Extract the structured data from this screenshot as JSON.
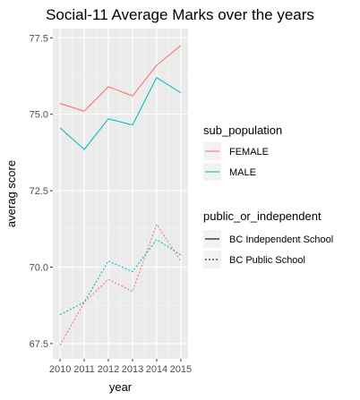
{
  "chart_data": {
    "type": "line",
    "title": "Social-11 Average Marks over the years",
    "xlabel": "year",
    "ylabel": "averag score",
    "x": [
      2010,
      2011,
      2012,
      2013,
      2014,
      2015
    ],
    "x_tick_labels": [
      "2010",
      "2011",
      "2012",
      "2013",
      "2014",
      "2015"
    ],
    "ylim": [
      67.0,
      77.8
    ],
    "y_ticks": [
      67.5,
      70.0,
      72.5,
      75.0,
      77.5
    ],
    "y_tick_labels": [
      "67.5",
      "70.0",
      "72.5",
      "75.0",
      "77.5"
    ],
    "grid": true,
    "series": [
      {
        "name": "FEMALE - BC Independent School",
        "sub_population": "FEMALE",
        "public_or_independent": "BC Independent School",
        "color": "#F8766D",
        "linetype": "solid",
        "values": [
          75.35,
          75.1,
          75.9,
          75.6,
          76.6,
          77.25
        ]
      },
      {
        "name": "MALE - BC Independent School",
        "sub_population": "MALE",
        "public_or_independent": "BC Independent School",
        "color": "#00BFC4",
        "linetype": "solid",
        "values": [
          74.55,
          73.85,
          74.85,
          74.65,
          76.2,
          75.7
        ]
      },
      {
        "name": "FEMALE - BC Public School",
        "sub_population": "FEMALE",
        "public_or_independent": "BC Public School",
        "color": "#F8766D",
        "linetype": "dotted",
        "values": [
          67.45,
          68.85,
          69.6,
          69.2,
          71.4,
          70.2
        ]
      },
      {
        "name": "MALE - BC Public School",
        "sub_population": "MALE",
        "public_or_independent": "BC Public School",
        "color": "#00BFC4",
        "linetype": "dotted",
        "values": [
          68.45,
          68.85,
          70.2,
          69.85,
          70.9,
          70.4
        ]
      }
    ],
    "legends": [
      {
        "title": "sub_population",
        "entries": [
          {
            "label": "FEMALE",
            "color": "#F8766D"
          },
          {
            "label": "MALE",
            "color": "#00BFC4"
          }
        ]
      },
      {
        "title": "public_or_independent",
        "entries": [
          {
            "label": "BC Independent School",
            "linetype": "solid"
          },
          {
            "label": "BC Public School",
            "linetype": "dotted"
          }
        ]
      }
    ],
    "legend_position": "right"
  }
}
